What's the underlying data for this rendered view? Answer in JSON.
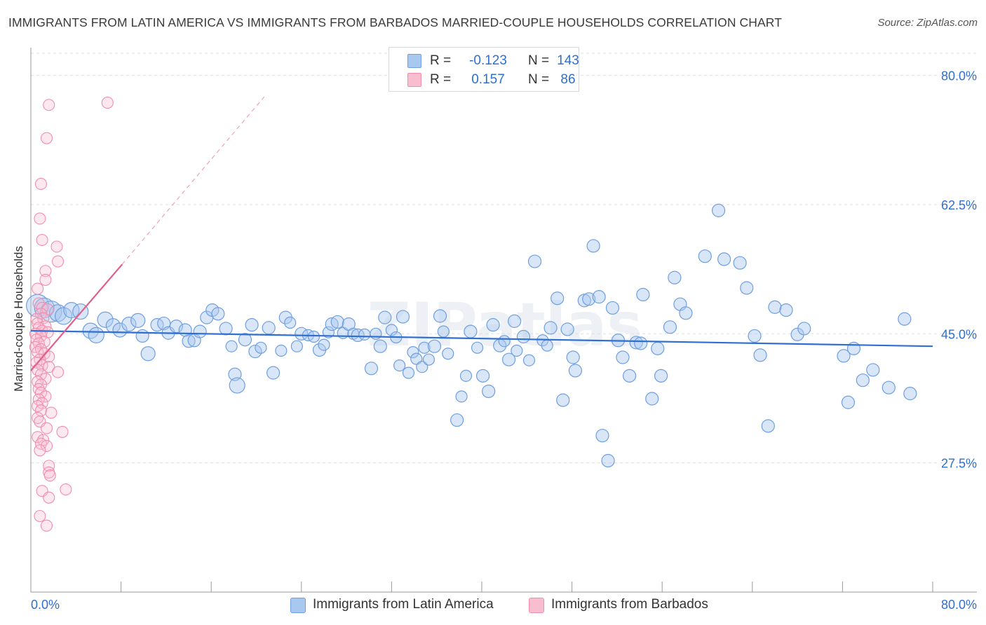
{
  "title": "IMMIGRANTS FROM LATIN AMERICA VS IMMIGRANTS FROM BARBADOS MARRIED-COUPLE HOUSEHOLDS CORRELATION CHART",
  "source": "Source: ZipAtlas.com",
  "watermark": "ZIPatlas",
  "legend": {
    "rows": [
      {
        "r_label": "R =",
        "r_value": "-0.123",
        "n_label": "N =",
        "n_value": "143",
        "color": "#a9c8f0",
        "border": "#6f9fe0"
      },
      {
        "r_label": "R =",
        "r_value": "0.157",
        "n_label": "N =",
        "n_value": "86",
        "color": "#f8bed0",
        "border": "#ee8fae"
      }
    ]
  },
  "bottom_legend": [
    "Immigrants from Latin America",
    "Immigrants from Barbados"
  ],
  "chart_data": {
    "type": "scatter",
    "title": "IMMIGRANTS FROM LATIN AMERICA VS IMMIGRANTS FROM BARBADOS MARRIED-COUPLE HOUSEHOLDS CORRELATION CHART",
    "xlabel": "",
    "ylabel": "Married-couple Households",
    "xlim": [
      0,
      80
    ],
    "ylim": [
      10,
      83
    ],
    "x_tick_labels": [
      "0.0%",
      "80.0%"
    ],
    "y_ticks": [
      27.5,
      45.0,
      62.5,
      80.0
    ],
    "y_tick_labels": [
      "27.5%",
      "45.0%",
      "62.5%",
      "80.0%"
    ],
    "grid": "horizontal dashed",
    "legend_position": "top-center",
    "series": [
      {
        "name": "Immigrants from Latin America",
        "color": "#6f9fe0",
        "fill": "#a9c8f0",
        "trend": {
          "x": [
            0,
            80
          ],
          "y": [
            45.4,
            43.3
          ],
          "style": "solid"
        },
        "points": [
          [
            0.6,
            48.8,
            16
          ],
          [
            1.2,
            48.5,
            14
          ],
          [
            1.8,
            48.0,
            15
          ],
          [
            2.4,
            47.8,
            12
          ],
          [
            2.9,
            47.4,
            12
          ],
          [
            3.6,
            48.2,
            11
          ],
          [
            4.4,
            48.0,
            11
          ],
          [
            5.3,
            45.4,
            11
          ],
          [
            5.8,
            44.8,
            11
          ],
          [
            6.6,
            46.9,
            11
          ],
          [
            7.3,
            46.1,
            10
          ],
          [
            7.9,
            45.5,
            10
          ],
          [
            8.7,
            46.3,
            10
          ],
          [
            9.5,
            46.8,
            10
          ],
          [
            9.9,
            44.7,
            9
          ],
          [
            10.4,
            42.3,
            10
          ],
          [
            11.2,
            46.2,
            9
          ],
          [
            11.8,
            46.4,
            9
          ],
          [
            12.2,
            45.1,
            9
          ],
          [
            12.9,
            46.0,
            9
          ],
          [
            13.7,
            45.5,
            9
          ],
          [
            14.0,
            44.0,
            9
          ],
          [
            14.5,
            44.1,
            9
          ],
          [
            15.0,
            45.3,
            9
          ],
          [
            15.6,
            47.2,
            9
          ],
          [
            16.1,
            48.2,
            9
          ],
          [
            16.6,
            47.7,
            9
          ],
          [
            17.3,
            45.7,
            9
          ],
          [
            17.8,
            43.3,
            8
          ],
          [
            18.1,
            39.5,
            9
          ],
          [
            18.3,
            38.0,
            11
          ],
          [
            19.0,
            44.2,
            9
          ],
          [
            19.6,
            46.2,
            9
          ],
          [
            19.9,
            42.6,
            9
          ],
          [
            20.4,
            43.1,
            8
          ],
          [
            21.1,
            45.8,
            9
          ],
          [
            21.5,
            39.7,
            9
          ],
          [
            22.2,
            42.7,
            8
          ],
          [
            22.6,
            47.2,
            9
          ],
          [
            23.0,
            46.5,
            8
          ],
          [
            23.6,
            43.3,
            8
          ],
          [
            24.0,
            45.0,
            9
          ],
          [
            24.6,
            44.8,
            8
          ],
          [
            25.1,
            44.6,
            8
          ],
          [
            25.6,
            42.8,
            9
          ],
          [
            26.0,
            43.5,
            8
          ],
          [
            26.4,
            45.2,
            8
          ],
          [
            26.7,
            46.3,
            9
          ],
          [
            27.2,
            46.6,
            9
          ],
          [
            27.7,
            45.1,
            8
          ],
          [
            28.2,
            46.3,
            9
          ],
          [
            28.6,
            45.0,
            8
          ],
          [
            29.0,
            44.8,
            9
          ],
          [
            29.6,
            44.9,
            8
          ],
          [
            30.2,
            40.3,
            9
          ],
          [
            30.6,
            45.0,
            8
          ],
          [
            31.0,
            43.3,
            9
          ],
          [
            31.4,
            47.2,
            9
          ],
          [
            32.0,
            45.5,
            8
          ],
          [
            32.4,
            44.5,
            8
          ],
          [
            32.7,
            40.7,
            8
          ],
          [
            33.0,
            47.3,
            9
          ],
          [
            33.5,
            39.7,
            8
          ],
          [
            33.9,
            42.5,
            8
          ],
          [
            34.2,
            41.6,
            8
          ],
          [
            34.7,
            40.5,
            8
          ],
          [
            34.9,
            43.1,
            8
          ],
          [
            35.3,
            41.5,
            8
          ],
          [
            35.8,
            43.3,
            9
          ],
          [
            36.3,
            47.4,
            9
          ],
          [
            36.6,
            45.3,
            8
          ],
          [
            37.0,
            42.3,
            8
          ],
          [
            37.8,
            33.3,
            9
          ],
          [
            38.2,
            36.5,
            8
          ],
          [
            38.6,
            39.3,
            8
          ],
          [
            39.0,
            45.3,
            9
          ],
          [
            39.6,
            43.1,
            8
          ],
          [
            40.1,
            39.3,
            9
          ],
          [
            40.6,
            37.2,
            9
          ],
          [
            41.0,
            46.2,
            9
          ],
          [
            41.6,
            43.4,
            9
          ],
          [
            42.0,
            44.0,
            8
          ],
          [
            42.4,
            41.5,
            9
          ],
          [
            42.9,
            46.7,
            9
          ],
          [
            43.1,
            42.7,
            8
          ],
          [
            43.7,
            44.6,
            9
          ],
          [
            44.2,
            41.4,
            8
          ],
          [
            44.7,
            54.8,
            9
          ],
          [
            45.4,
            44.1,
            8
          ],
          [
            45.8,
            43.4,
            8
          ],
          [
            46.1,
            45.8,
            9
          ],
          [
            46.7,
            49.8,
            9
          ],
          [
            47.2,
            36.0,
            9
          ],
          [
            47.6,
            45.6,
            9
          ],
          [
            48.1,
            41.8,
            9
          ],
          [
            48.3,
            40.0,
            9
          ],
          [
            49.1,
            49.5,
            9
          ],
          [
            49.5,
            49.7,
            9
          ],
          [
            49.9,
            56.9,
            9
          ],
          [
            50.4,
            50.0,
            9
          ],
          [
            50.7,
            31.2,
            9
          ],
          [
            51.2,
            27.8,
            9
          ],
          [
            51.6,
            48.5,
            9
          ],
          [
            52.1,
            44.1,
            9
          ],
          [
            52.5,
            41.8,
            9
          ],
          [
            53.1,
            39.3,
            9
          ],
          [
            53.7,
            43.8,
            9
          ],
          [
            54.1,
            43.7,
            9
          ],
          [
            54.3,
            50.3,
            9
          ],
          [
            55.1,
            36.2,
            9
          ],
          [
            55.6,
            43.0,
            9
          ],
          [
            55.9,
            39.3,
            9
          ],
          [
            56.7,
            45.9,
            9
          ],
          [
            57.1,
            52.6,
            9
          ],
          [
            57.6,
            49.0,
            9
          ],
          [
            58.1,
            47.8,
            9
          ],
          [
            59.8,
            55.5,
            9
          ],
          [
            61.0,
            61.7,
            9
          ],
          [
            61.5,
            55.1,
            9
          ],
          [
            62.9,
            54.6,
            9
          ],
          [
            63.5,
            51.2,
            9
          ],
          [
            64.2,
            44.7,
            9
          ],
          [
            64.7,
            42.1,
            9
          ],
          [
            65.4,
            32.5,
            9
          ],
          [
            66.0,
            48.6,
            9
          ],
          [
            67.0,
            48.2,
            9
          ],
          [
            68.0,
            44.9,
            9
          ],
          [
            68.6,
            45.7,
            9
          ],
          [
            72.1,
            42.0,
            9
          ],
          [
            72.5,
            35.7,
            9
          ],
          [
            73.0,
            43.0,
            9
          ],
          [
            73.8,
            38.7,
            9
          ],
          [
            74.7,
            40.1,
            9
          ],
          [
            76.1,
            37.7,
            9
          ],
          [
            77.5,
            47.0,
            9
          ],
          [
            78.0,
            36.9,
            9
          ]
        ]
      },
      {
        "name": "Immigrants from Barbados",
        "color": "#ee8fae",
        "fill": "#f8bed0",
        "trend": {
          "x": [
            0,
            8.1,
            20.7
          ],
          "y": [
            40.0,
            54.4,
            77.1
          ],
          "style": "solid then dashed"
        },
        "points": [
          [
            1.6,
            76.0,
            8
          ],
          [
            6.8,
            76.3,
            8
          ],
          [
            1.4,
            71.5,
            8
          ],
          [
            0.9,
            65.3,
            8
          ],
          [
            0.8,
            60.6,
            8
          ],
          [
            1.0,
            57.7,
            8
          ],
          [
            2.3,
            56.8,
            8
          ],
          [
            2.4,
            54.8,
            8
          ],
          [
            1.3,
            53.5,
            8
          ],
          [
            1.3,
            52.3,
            8
          ],
          [
            0.6,
            51.1,
            8
          ],
          [
            0.7,
            49.1,
            8
          ],
          [
            1.0,
            48.5,
            8
          ],
          [
            1.5,
            48.3,
            8
          ],
          [
            0.9,
            47.7,
            8
          ],
          [
            1.1,
            47.1,
            8
          ],
          [
            0.5,
            47.0,
            8
          ],
          [
            0.6,
            46.4,
            8
          ],
          [
            1.3,
            46.0,
            8
          ],
          [
            0.7,
            45.8,
            8
          ],
          [
            1.0,
            45.4,
            8
          ],
          [
            1.5,
            45.2,
            8
          ],
          [
            0.4,
            45.0,
            8
          ],
          [
            0.9,
            44.7,
            8
          ],
          [
            0.5,
            44.2,
            8
          ],
          [
            1.2,
            43.9,
            8
          ],
          [
            0.7,
            43.7,
            8
          ],
          [
            0.4,
            43.2,
            8
          ],
          [
            0.9,
            42.9,
            8
          ],
          [
            0.6,
            42.5,
            8
          ],
          [
            1.2,
            42.3,
            8
          ],
          [
            1.6,
            41.9,
            8
          ],
          [
            0.8,
            41.5,
            8
          ],
          [
            0.5,
            41.1,
            8
          ],
          [
            1.0,
            40.7,
            8
          ],
          [
            1.6,
            40.5,
            8
          ],
          [
            0.6,
            40.1,
            8
          ],
          [
            2.4,
            39.8,
            8
          ],
          [
            0.9,
            39.5,
            8
          ],
          [
            1.3,
            38.9,
            8
          ],
          [
            0.6,
            38.5,
            8
          ],
          [
            0.9,
            38.1,
            8
          ],
          [
            0.7,
            37.5,
            8
          ],
          [
            0.9,
            37.0,
            8
          ],
          [
            1.3,
            36.5,
            8
          ],
          [
            0.7,
            36.1,
            8
          ],
          [
            1.0,
            35.6,
            8
          ],
          [
            0.6,
            35.2,
            8
          ],
          [
            0.9,
            34.6,
            8
          ],
          [
            1.8,
            34.3,
            8
          ],
          [
            0.6,
            33.6,
            8
          ],
          [
            0.8,
            33.1,
            8
          ],
          [
            1.4,
            32.2,
            8
          ],
          [
            2.8,
            31.7,
            8
          ],
          [
            0.6,
            31.0,
            8
          ],
          [
            1.1,
            30.6,
            8
          ],
          [
            0.9,
            30.1,
            8
          ],
          [
            1.4,
            29.8,
            8
          ],
          [
            0.8,
            29.2,
            8
          ],
          [
            1.6,
            27.1,
            8
          ],
          [
            1.6,
            26.2,
            8
          ],
          [
            1.7,
            25.8,
            8
          ],
          [
            1.0,
            23.7,
            8
          ],
          [
            3.1,
            23.9,
            8
          ],
          [
            1.6,
            22.8,
            8
          ],
          [
            0.8,
            20.3,
            8
          ],
          [
            1.4,
            19.0,
            8
          ]
        ]
      }
    ]
  }
}
